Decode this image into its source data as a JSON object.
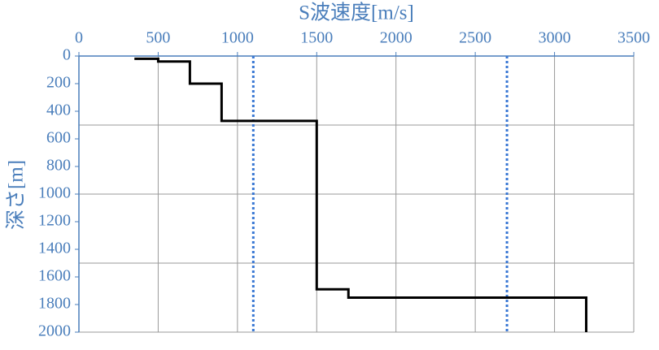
{
  "chart_data": {
    "type": "step-profile",
    "x_label": "S波速度[m/s]",
    "y_label": "深さ[m]",
    "xlim": [
      0,
      3500
    ],
    "xticks": [
      0,
      500,
      1000,
      1500,
      2000,
      2500,
      3000,
      3500
    ],
    "ylim": [
      0,
      2000
    ],
    "yticks": [
      0,
      200,
      400,
      600,
      800,
      1000,
      1200,
      1400,
      1600,
      1800,
      2000
    ],
    "y_inverted": true,
    "x_axis_position": "top",
    "xgrid": true,
    "ygrid": [
      500,
      1000,
      1500
    ],
    "series": [
      {
        "color": "#000000",
        "x": [
          350,
          500,
          500,
          700,
          700,
          900,
          900,
          1500,
          1500,
          1700,
          1700,
          3200,
          3200
        ],
        "y": [
          20,
          20,
          40,
          40,
          200,
          200,
          470,
          470,
          1690,
          1690,
          1750,
          1750,
          2000
        ]
      }
    ],
    "reference_lines": [
      {
        "x": 1100,
        "color": "#3a78d4",
        "style": "dotted"
      },
      {
        "x": 2700,
        "color": "#3a78d4",
        "style": "dotted"
      }
    ]
  }
}
